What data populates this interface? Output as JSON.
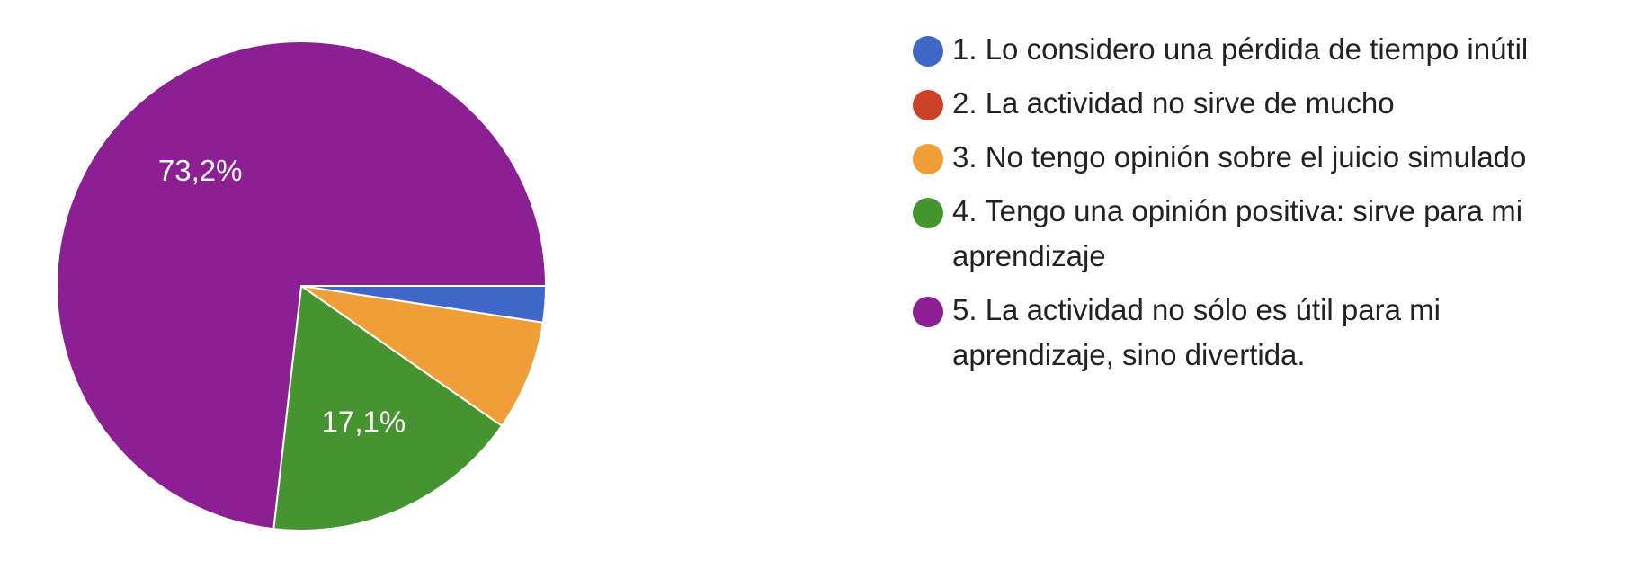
{
  "chart_data": {
    "type": "pie",
    "slices": [
      {
        "label": "1. Lo considero una pérdida de tiempo inútil",
        "value": 2.4,
        "color": "#3F67C8",
        "display_label": ""
      },
      {
        "label": "2. La actividad no sirve de mucho",
        "value": 0,
        "color": "#CC4125",
        "display_label": ""
      },
      {
        "label": "3. No tengo opinión sobre el juicio simulado",
        "value": 7.3,
        "color": "#F09E38",
        "display_label": ""
      },
      {
        "label": "4. Tengo una opinión positiva: sirve para mi aprendizaje",
        "value": 17.1,
        "color": "#45942F",
        "display_label": "17,1%"
      },
      {
        "label": "5. La actividad no sólo es útil para mi aprendizaje, sino divertida.",
        "value": 73.2,
        "color": "#8B1F93",
        "display_label": "73,2%"
      }
    ],
    "legend_position": "right"
  }
}
